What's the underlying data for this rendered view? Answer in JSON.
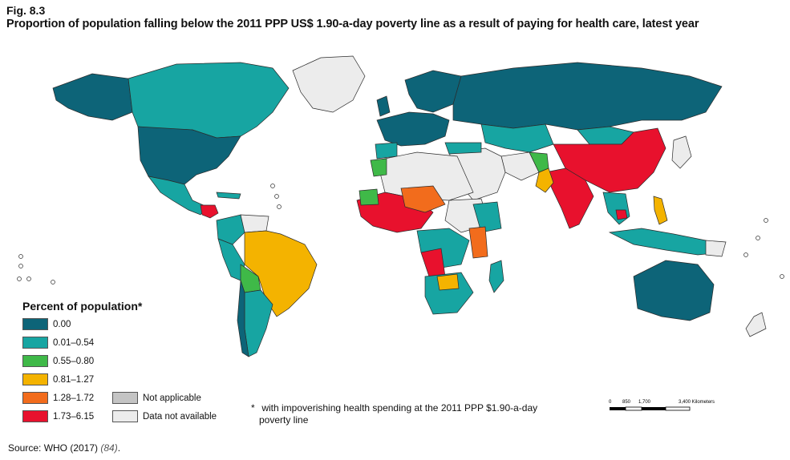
{
  "figure": {
    "label": "Fig. 8.3",
    "title": "Proportion of population falling below the 2011 PPP US$ 1.90-a-day poverty line as a result of paying for health care, latest year"
  },
  "legend": {
    "title": "Percent of population*",
    "categories": [
      {
        "label": "0.00",
        "color": "#0d6478"
      },
      {
        "label": "0.01–0.54",
        "color": "#17a5a2"
      },
      {
        "label": "0.55–0.80",
        "color": "#3fb948"
      },
      {
        "label": "0.81–1.27",
        "color": "#f4b300"
      },
      {
        "label": "1.28–1.72",
        "color": "#f26c1c"
      },
      {
        "label": "1.73–6.15",
        "color": "#e8112d"
      }
    ],
    "extra": [
      {
        "label": "Not applicable",
        "color": "#c4c4c4"
      },
      {
        "label": "Data not available",
        "color": "#ececec"
      }
    ]
  },
  "footnote": {
    "marker": "*",
    "line1": "with impoverishing  health spending at the 2011 PPP $1.90-a-day",
    "line2": "poverty line"
  },
  "scale": {
    "ticks": [
      "0",
      "850",
      "1,700",
      "3,400 Kilometers"
    ]
  },
  "source": {
    "text": "Source: WHO (2017) ",
    "ref": "(84)",
    "tail": "."
  },
  "colors": {
    "c0": "#0d6478",
    "c1": "#17a5a2",
    "c2": "#3fb948",
    "c3": "#f4b300",
    "c4": "#f26c1c",
    "c5": "#e8112d",
    "na": "#c4c4c4",
    "nd": "#ececec"
  }
}
